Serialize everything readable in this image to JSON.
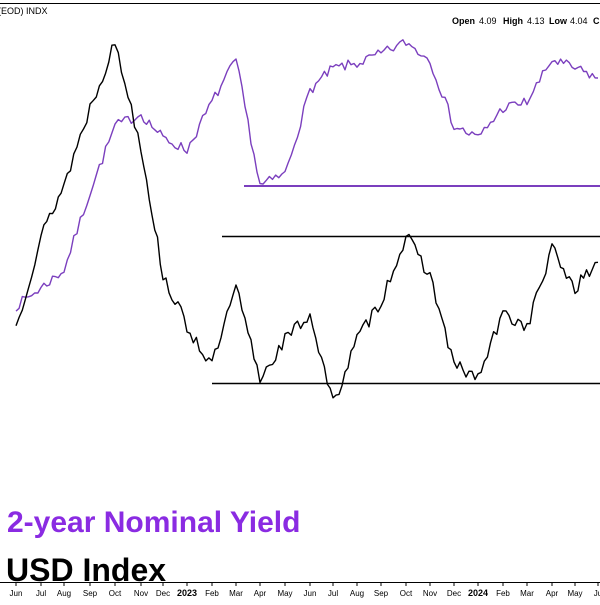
{
  "header": {
    "symbol_text": "(EOD) INDX",
    "open_label": "Open",
    "open_value": "4.09",
    "high_label": "High",
    "high_value": "4.13",
    "low_label": "Low",
    "low_value": "4.04",
    "close_label": "C"
  },
  "colors": {
    "yield_line": "#7b3fbe",
    "yield_legend": "#8a2be2",
    "usd_line": "#000000",
    "support_yield": "#7b3fbe",
    "support_usd": "#000000"
  },
  "chart_data": {
    "type": "line",
    "title": "",
    "xlabel": "",
    "ylabel": "",
    "grid": false,
    "legend_placement": "bottom-left",
    "x_ticks": [
      "Jun",
      "Jul",
      "Aug",
      "Sep",
      "Oct",
      "Nov",
      "Dec",
      "2023",
      "Feb",
      "Mar",
      "Apr",
      "May",
      "Jun",
      "Jul",
      "Aug",
      "Sep",
      "Oct",
      "Nov",
      "Dec",
      "2024",
      "Feb",
      "Mar",
      "Apr",
      "May",
      "Ju"
    ],
    "x": [
      "2022-06",
      "2022-07",
      "2022-08",
      "2022-09",
      "2022-10",
      "2022-11",
      "2022-12",
      "2023-01",
      "2023-02",
      "2023-03",
      "2023-04",
      "2023-05",
      "2023-06",
      "2023-07",
      "2023-08",
      "2023-09",
      "2023-10",
      "2023-11",
      "2023-12",
      "2024-01",
      "2024-02",
      "2024-03",
      "2024-04",
      "2024-05",
      "2024-06"
    ],
    "series": [
      {
        "name": "2-year Nominal Yield",
        "values": [
          2.9,
          3.05,
          3.2,
          3.85,
          4.4,
          4.5,
          4.3,
          4.2,
          4.6,
          4.95,
          3.9,
          4.0,
          4.7,
          4.88,
          4.92,
          5.0,
          5.1,
          4.95,
          4.4,
          4.3,
          4.55,
          4.6,
          4.95,
          4.88,
          4.8
        ]
      },
      {
        "name": "USD Index",
        "values": [
          103.0,
          106.5,
          108.5,
          111.5,
          114.0,
          110.0,
          105.0,
          103.0,
          101.5,
          104.5,
          101.0,
          102.5,
          103.5,
          100.0,
          102.5,
          104.0,
          106.5,
          105.0,
          101.5,
          101.0,
          103.5,
          103.0,
          106.0,
          104.5,
          105.5
        ]
      }
    ],
    "annotations": [
      {
        "type": "horizontal",
        "series": "2-year Nominal Yield",
        "value": 3.9
      },
      {
        "type": "horizontal",
        "series": "USD Index",
        "value": 106.5
      },
      {
        "type": "horizontal",
        "series": "USD Index",
        "value": 100.8
      }
    ]
  }
}
